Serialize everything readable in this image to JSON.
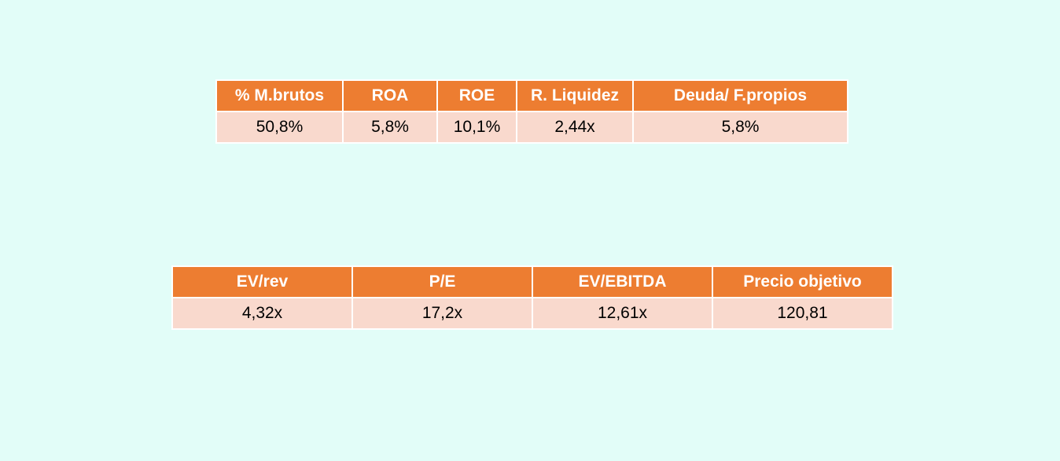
{
  "tables": [
    {
      "header": [
        "% M.brutos",
        "ROA",
        "ROE",
        "R. Liquidez",
        "Deuda/ F.propios"
      ],
      "rows": [
        [
          "50,8%",
          "5,8%",
          "10,1%",
          "2,44x",
          "5,8%"
        ]
      ]
    },
    {
      "header": [
        "EV/rev",
        "P/E",
        "EV/EBITDA",
        "Precio objetivo"
      ],
      "rows": [
        [
          "4,32x",
          "17,2x",
          "12,61x",
          "120,81"
        ]
      ]
    }
  ]
}
